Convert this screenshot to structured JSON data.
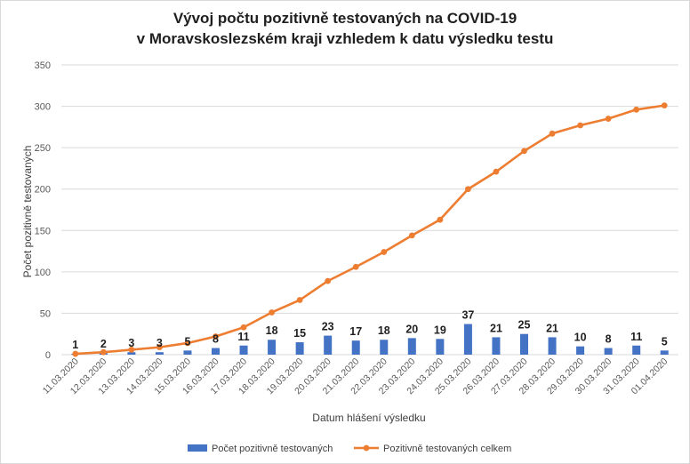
{
  "chart_data": {
    "type": "bar+line",
    "title_line1": "Vývoj počtu pozitivně testovaných na COVID-19",
    "title_line2": "v Moravskoslezském kraji vzhledem k datu výsledku testu",
    "xlabel": "Datum hlášení výsledku",
    "ylabel": "Počet pozitivně testovaných",
    "ylim": [
      0,
      350
    ],
    "yticks": [
      0,
      50,
      100,
      150,
      200,
      250,
      300,
      350
    ],
    "grid": true,
    "legend_position": "bottom",
    "categories": [
      "11.03.2020",
      "12.03.2020",
      "13.03.2020",
      "14.03.2020",
      "15.03.2020",
      "16.03.2020",
      "17.03.2020",
      "18.03.2020",
      "19.03.2020",
      "20.03.2020",
      "21.03.2020",
      "22.03.2020",
      "23.03.2020",
      "24.03.2020",
      "25.03.2020",
      "26.03.2020",
      "27.03.2020",
      "28.03.2020",
      "29.03.2020",
      "30.03.2020",
      "31.03.2020",
      "01.04.2020"
    ],
    "series": [
      {
        "name": "Počet pozitivně testovaných",
        "type": "bar",
        "color": "#4472c4",
        "values": [
          1,
          2,
          3,
          3,
          5,
          8,
          11,
          18,
          15,
          23,
          17,
          18,
          20,
          19,
          37,
          21,
          25,
          21,
          10,
          8,
          11,
          5
        ]
      },
      {
        "name": "Pozitivně testovaných celkem",
        "type": "line",
        "color": "#ed7d31",
        "values": [
          1,
          3,
          6,
          9,
          14,
          22,
          33,
          51,
          66,
          89,
          106,
          124,
          144,
          163,
          200,
          221,
          246,
          267,
          277,
          285,
          296,
          301
        ]
      }
    ]
  }
}
